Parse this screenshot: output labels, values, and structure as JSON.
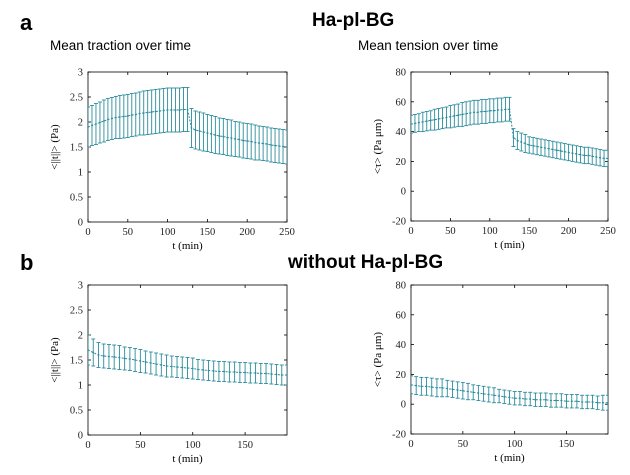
{
  "figure": {
    "panel_a_letter": "a",
    "panel_b_letter": "b",
    "row_a_title": "Ha-pl-BG",
    "row_b_title": "without Ha-pl-BG",
    "plot_a1_title": "Mean traction over time",
    "plot_a2_title": "Mean tension over time"
  },
  "colors": {
    "series": "#2a8c9c",
    "axis": "#000000",
    "background": "#ffffff"
  },
  "chart_data": [
    {
      "type": "line",
      "panel": "a-left",
      "title": "Mean traction over time",
      "xlabel": "t (min)",
      "ylabel": "<||t||> (Pa)",
      "xlim": [
        0,
        250
      ],
      "ylim": [
        0,
        3
      ],
      "xticks": [
        0,
        50,
        100,
        150,
        200,
        250
      ],
      "yticks": [
        0,
        0.5,
        1,
        1.5,
        2,
        2.5,
        3
      ],
      "error_bars": true,
      "x": [
        0,
        5,
        10,
        15,
        20,
        25,
        30,
        35,
        40,
        45,
        50,
        55,
        60,
        65,
        70,
        75,
        80,
        85,
        90,
        95,
        100,
        105,
        110,
        115,
        120,
        125,
        130,
        135,
        140,
        145,
        150,
        155,
        160,
        165,
        170,
        175,
        180,
        185,
        190,
        195,
        200,
        205,
        210,
        215,
        220,
        225,
        230,
        235,
        240,
        245,
        250
      ],
      "y": [
        1.9,
        1.93,
        1.96,
        1.99,
        2.02,
        2.05,
        2.07,
        2.09,
        2.1,
        2.11,
        2.12,
        2.14,
        2.15,
        2.17,
        2.18,
        2.19,
        2.2,
        2.21,
        2.22,
        2.23,
        2.24,
        2.24,
        2.24,
        2.24,
        2.25,
        2.25,
        1.88,
        1.84,
        1.82,
        1.8,
        1.78,
        1.76,
        1.74,
        1.72,
        1.71,
        1.69,
        1.68,
        1.66,
        1.65,
        1.63,
        1.62,
        1.61,
        1.59,
        1.58,
        1.57,
        1.56,
        1.54,
        1.53,
        1.52,
        1.51,
        1.5
      ],
      "err": [
        0.4,
        0.4,
        0.41,
        0.41,
        0.42,
        0.42,
        0.42,
        0.42,
        0.43,
        0.43,
        0.43,
        0.43,
        0.43,
        0.43,
        0.44,
        0.44,
        0.44,
        0.44,
        0.44,
        0.44,
        0.44,
        0.44,
        0.44,
        0.44,
        0.44,
        0.44,
        0.39,
        0.38,
        0.38,
        0.38,
        0.37,
        0.37,
        0.37,
        0.36,
        0.36,
        0.36,
        0.36,
        0.35,
        0.35,
        0.35,
        0.35,
        0.35,
        0.35,
        0.34,
        0.34,
        0.34,
        0.34,
        0.34,
        0.34,
        0.34,
        0.34
      ]
    },
    {
      "type": "line",
      "panel": "a-right",
      "title": "Mean tension over time",
      "xlabel": "t (min)",
      "ylabel": "<τ> (Pa μm)",
      "xlim": [
        0,
        250
      ],
      "ylim": [
        -20,
        80
      ],
      "xticks": [
        0,
        50,
        100,
        150,
        200,
        250
      ],
      "yticks": [
        -20,
        0,
        20,
        40,
        60,
        80
      ],
      "error_bars": true,
      "x": [
        0,
        5,
        10,
        15,
        20,
        25,
        30,
        35,
        40,
        45,
        50,
        55,
        60,
        65,
        70,
        75,
        80,
        85,
        90,
        95,
        100,
        105,
        110,
        115,
        120,
        125,
        130,
        135,
        140,
        145,
        150,
        155,
        160,
        165,
        170,
        175,
        180,
        185,
        190,
        195,
        200,
        205,
        210,
        215,
        220,
        225,
        230,
        235,
        240,
        245,
        250
      ],
      "y": [
        45,
        45.5,
        46,
        46.5,
        47,
        47.5,
        48,
        48.5,
        49,
        49.5,
        50,
        50.5,
        51,
        51.5,
        52,
        52.5,
        53,
        53,
        53.5,
        53.5,
        54,
        54,
        54.5,
        54.5,
        55,
        55,
        36,
        34,
        33,
        32,
        31,
        30.5,
        30,
        29.5,
        29,
        28.5,
        28,
        27.5,
        27,
        26.5,
        26,
        25.5,
        25,
        24.5,
        24,
        24,
        23.5,
        23,
        22.5,
        22,
        22
      ],
      "err": [
        6,
        6,
        6,
        6.5,
        6.5,
        6.5,
        7,
        7,
        7,
        7,
        7.5,
        7.5,
        7.5,
        8,
        8,
        8,
        8,
        8,
        8,
        8,
        8,
        8,
        8,
        8,
        8,
        8,
        6,
        6,
        6,
        6,
        5.5,
        5.5,
        5.5,
        5.5,
        5.5,
        5.5,
        5.5,
        5.5,
        5.5,
        5.5,
        5.5,
        5.5,
        5.5,
        5.5,
        5.5,
        5.5,
        5.5,
        5.5,
        5.5,
        5.5,
        5.5
      ]
    },
    {
      "type": "line",
      "panel": "b-left",
      "title": "",
      "xlabel": "t (min)",
      "ylabel": "<||t||> (Pa)",
      "xlim": [
        0,
        190
      ],
      "ylim": [
        0,
        3
      ],
      "xticks": [
        0,
        50,
        100,
        150
      ],
      "yticks": [
        0,
        0.5,
        1,
        1.5,
        2,
        2.5,
        3
      ],
      "error_bars": true,
      "x": [
        0,
        5,
        10,
        15,
        20,
        25,
        30,
        35,
        40,
        45,
        50,
        55,
        60,
        65,
        70,
        75,
        80,
        85,
        90,
        95,
        100,
        105,
        110,
        115,
        120,
        125,
        130,
        135,
        140,
        145,
        150,
        155,
        160,
        165,
        170,
        175,
        180,
        185,
        190
      ],
      "y": [
        1.7,
        1.65,
        1.6,
        1.58,
        1.57,
        1.56,
        1.55,
        1.53,
        1.52,
        1.5,
        1.48,
        1.46,
        1.44,
        1.42,
        1.4,
        1.38,
        1.37,
        1.36,
        1.35,
        1.34,
        1.33,
        1.31,
        1.3,
        1.29,
        1.28,
        1.27,
        1.27,
        1.26,
        1.26,
        1.25,
        1.25,
        1.24,
        1.24,
        1.23,
        1.23,
        1.22,
        1.21,
        1.2,
        1.2
      ],
      "err": [
        0.3,
        0.27,
        0.25,
        0.24,
        0.24,
        0.24,
        0.24,
        0.23,
        0.23,
        0.23,
        0.23,
        0.22,
        0.22,
        0.22,
        0.22,
        0.22,
        0.21,
        0.21,
        0.21,
        0.21,
        0.21,
        0.2,
        0.2,
        0.2,
        0.2,
        0.2,
        0.2,
        0.2,
        0.2,
        0.2,
        0.2,
        0.2,
        0.2,
        0.2,
        0.2,
        0.2,
        0.2,
        0.2,
        0.2
      ]
    },
    {
      "type": "line",
      "panel": "b-right",
      "title": "",
      "xlabel": "t (min)",
      "ylabel": "<τ> (Pa μm)",
      "xlim": [
        0,
        190
      ],
      "ylim": [
        -20,
        80
      ],
      "xticks": [
        0,
        50,
        100,
        150
      ],
      "yticks": [
        -20,
        0,
        20,
        40,
        60,
        80
      ],
      "error_bars": true,
      "x": [
        0,
        5,
        10,
        15,
        20,
        25,
        30,
        35,
        40,
        45,
        50,
        55,
        60,
        65,
        70,
        75,
        80,
        85,
        90,
        95,
        100,
        105,
        110,
        115,
        120,
        125,
        130,
        135,
        140,
        145,
        150,
        155,
        160,
        165,
        170,
        175,
        180,
        185,
        190
      ],
      "y": [
        13,
        12.5,
        12,
        12,
        11.5,
        11,
        11,
        10.5,
        10,
        9.5,
        9,
        8.5,
        8,
        7.5,
        7,
        6.5,
        6,
        5.5,
        5,
        4.5,
        4,
        4,
        3.5,
        3.5,
        3,
        3,
        3,
        2.5,
        2.5,
        2.5,
        2,
        2,
        2,
        1.5,
        1.5,
        1.5,
        1,
        1,
        1
      ],
      "err": [
        6,
        6,
        6,
        6,
        6,
        6,
        6,
        5.5,
        5.5,
        5.5,
        5.5,
        5.5,
        5,
        5,
        5,
        5,
        5,
        4.5,
        4.5,
        4.5,
        4.5,
        4.5,
        4.5,
        4.5,
        4.5,
        4.5,
        4.5,
        4.5,
        4.5,
        4.5,
        4.5,
        4.5,
        4.5,
        4.5,
        4.5,
        4.5,
        4.5,
        5,
        5
      ]
    }
  ]
}
